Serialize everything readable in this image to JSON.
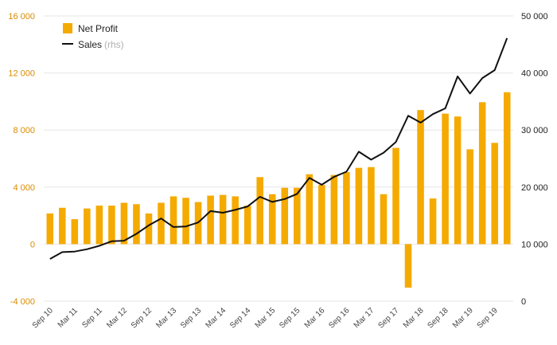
{
  "colors": {
    "bar": "#f5aa00",
    "line": "#111111",
    "grid": "#e6e6e6",
    "left_axis_text": "#d98c00",
    "right_axis_text": "#222222"
  },
  "legend": {
    "position": "top-left",
    "bar_label": "Net Profit",
    "line_label": "Sales",
    "line_suffix": "(rhs)"
  },
  "chart_data": {
    "type": "bar",
    "combo": "bar + line (secondary right axis)",
    "grid": true,
    "y_left": {
      "min": -4000,
      "max": 16000,
      "ticks": [
        -4000,
        0,
        4000,
        8000,
        12000,
        16000
      ],
      "tick_labels": [
        "-4 000",
        "0",
        "4 000",
        "8 000",
        "12 000",
        "16 000"
      ]
    },
    "y_right": {
      "min": 0,
      "max": 50000,
      "ticks": [
        0,
        10000,
        20000,
        30000,
        40000,
        50000
      ],
      "tick_labels": [
        "0",
        "10 000",
        "20 000",
        "30 000",
        "40 000",
        "50 000"
      ]
    },
    "categories": [
      "Sep 10",
      "Dec 10",
      "Mar 11",
      "Jun 11",
      "Sep 11",
      "Dec 11",
      "Mar 12",
      "Jun 12",
      "Sep 12",
      "Dec 12",
      "Mar 13",
      "Jun 13",
      "Sep 13",
      "Dec 13",
      "Mar 14",
      "Jun 14",
      "Sep 14",
      "Dec 14",
      "Mar 15",
      "Jun 15",
      "Sep 15",
      "Dec 15",
      "Mar 16",
      "Jun 16",
      "Sep 16",
      "Dec 16",
      "Mar 17",
      "Jun 17",
      "Sep 17",
      "Dec 17",
      "Mar 18",
      "Jun 18",
      "Sep 18",
      "Dec 18",
      "Mar 19",
      "Jun 19",
      "Sep 19",
      "Dec 19"
    ],
    "x_tick_labels": [
      "Sep 10",
      "Mar 11",
      "Sep 11",
      "Mar 12",
      "Sep 12",
      "Mar 13",
      "Sep 13",
      "Mar 14",
      "Sep 14",
      "Mar 15",
      "Sep 15",
      "Mar 16",
      "Sep 16",
      "Mar 17",
      "Sep 17",
      "Mar 18",
      "Sep 18",
      "Mar 19",
      "Sep 19"
    ],
    "series": [
      {
        "name": "Net Profit",
        "type": "bar",
        "axis": "left",
        "values": [
          2150,
          2550,
          1750,
          2500,
          2700,
          2700,
          2900,
          2800,
          2150,
          2900,
          3350,
          3250,
          2950,
          3400,
          3450,
          3350,
          2700,
          4700,
          3500,
          3950,
          3950,
          4900,
          4150,
          4850,
          5050,
          5350,
          5400,
          3500,
          6750,
          -3050,
          9400,
          3200,
          9150,
          8950,
          6650,
          9950,
          7100,
          10650
        ]
      },
      {
        "name": "Sales",
        "type": "line",
        "axis": "right",
        "values": [
          7400,
          8600,
          8700,
          9100,
          9700,
          10500,
          10600,
          11800,
          13300,
          14500,
          13000,
          13100,
          13800,
          15800,
          15500,
          16000,
          16600,
          18300,
          17400,
          17900,
          18800,
          21600,
          20400,
          21800,
          22700,
          26200,
          24800,
          26000,
          27900,
          32500,
          31300,
          32800,
          33800,
          39400,
          36400,
          39100,
          40500,
          46100
        ]
      }
    ]
  }
}
